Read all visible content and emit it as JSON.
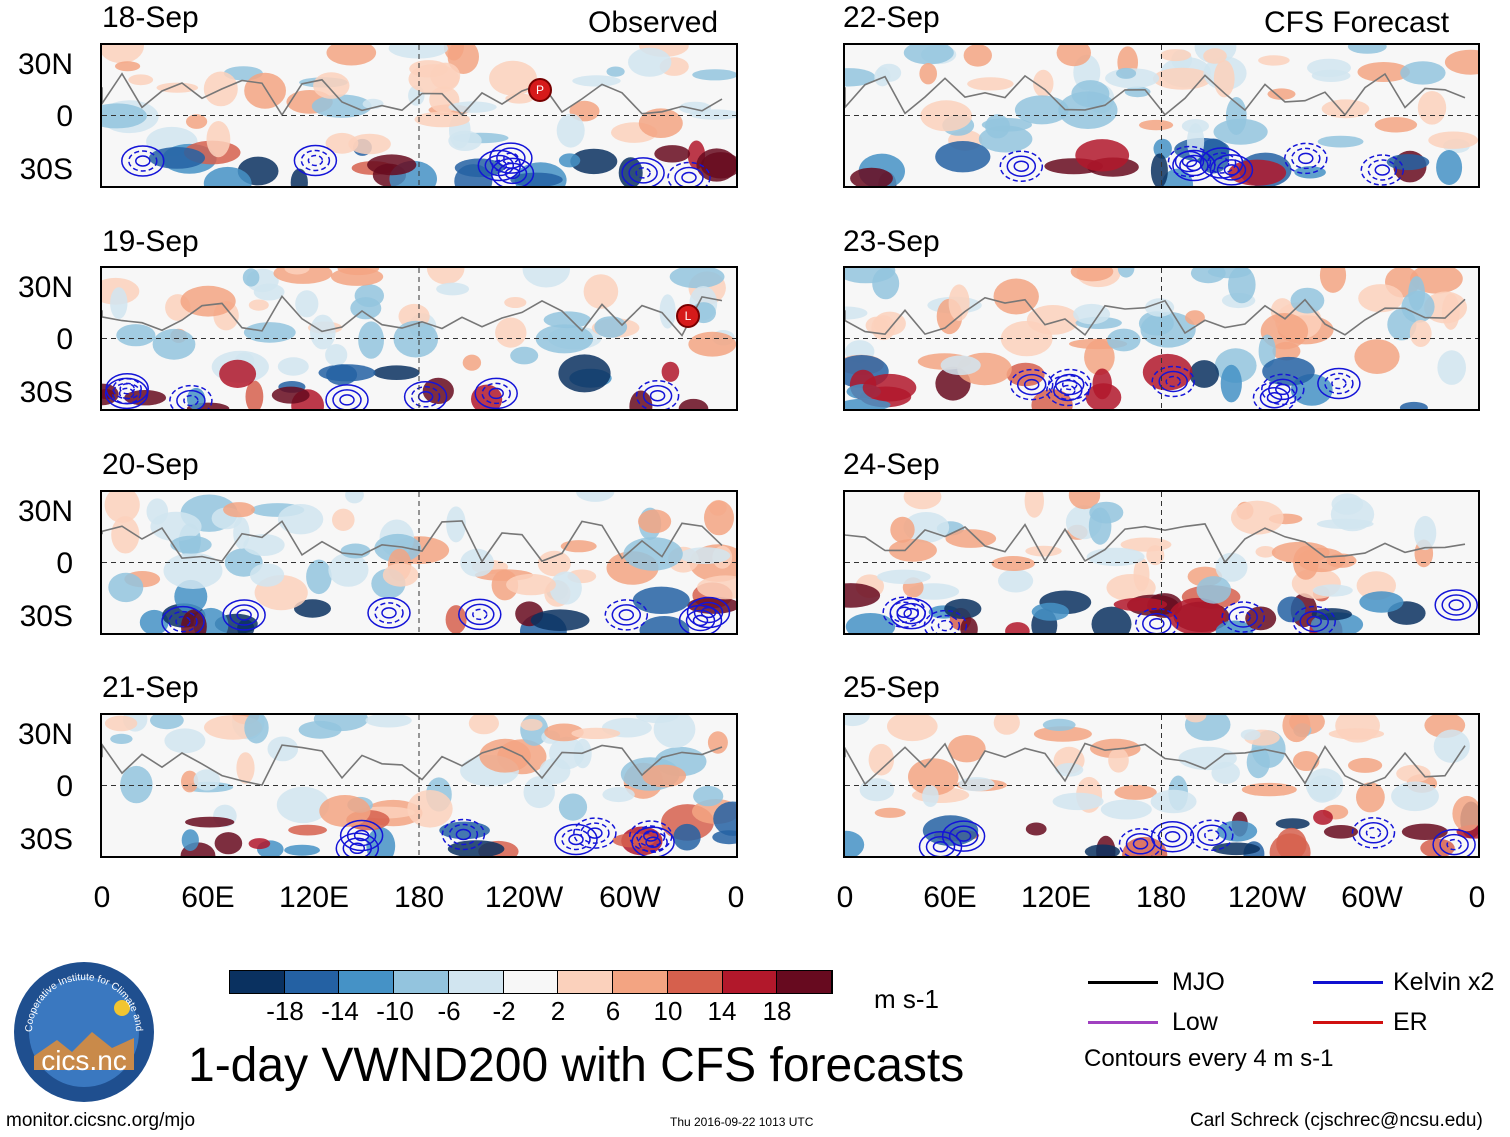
{
  "headers": {
    "left": "Observed",
    "right": "CFS Forecast"
  },
  "observed_panels": [
    {
      "date": "18-Sep",
      "storms": [
        "P"
      ]
    },
    {
      "date": "19-Sep",
      "storms": [
        "L"
      ]
    },
    {
      "date": "20-Sep",
      "storms": []
    },
    {
      "date": "21-Sep",
      "storms": []
    }
  ],
  "forecast_panels": [
    {
      "date": "22-Sep"
    },
    {
      "date": "23-Sep"
    },
    {
      "date": "24-Sep"
    },
    {
      "date": "25-Sep"
    }
  ],
  "y_axis_labels": [
    "30N",
    "0",
    "30S"
  ],
  "x_axis_labels": [
    "0",
    "60E",
    "120E",
    "180",
    "120W",
    "60W",
    "0"
  ],
  "colorbar": {
    "ticks": [
      "-18",
      "-14",
      "-10",
      "-6",
      "-2",
      "2",
      "6",
      "10",
      "14",
      "18"
    ],
    "colors": [
      "#0a3160",
      "#2461a3",
      "#4592c6",
      "#93c4de",
      "#d1e5f0",
      "#f7f7f7",
      "#fbd1bc",
      "#f3a482",
      "#d6604d",
      "#b2182b",
      "#670a1f"
    ],
    "units": "m s-1"
  },
  "legend": {
    "items": [
      {
        "label": "MJO",
        "color": "#000000"
      },
      {
        "label": "Kelvin x2",
        "color": "#1010d0"
      },
      {
        "label": "Low",
        "color": "#a040c0"
      },
      {
        "label": "ER",
        "color": "#d01010"
      }
    ],
    "note": "Contours every 4 m s-1"
  },
  "title": "1-day VWND200 with CFS forecasts",
  "logo_text": "cics.nc",
  "logo_ring_text": "Cooperative Institute for Climate and Satellites",
  "footer": {
    "url": "monitor.cicsnc.org/mjo",
    "timestamp": "Thu 2016-09-22 1013 UTC",
    "credit": "Carl Schreck (cjschrec@ncsu.edu)"
  }
}
